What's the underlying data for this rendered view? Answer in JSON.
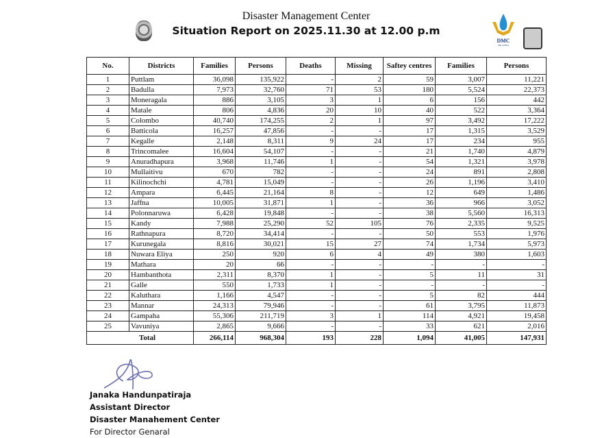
{
  "header": {
    "title": "Disaster Management Center",
    "subtitle": "Situation Report on 2025.11.30 at 12.00 p.m",
    "logo_text": "DMC",
    "logo_subtext": "SRI LANKA"
  },
  "table": {
    "columns": [
      "No.",
      "Districts",
      "Families",
      "Persons",
      "Deaths",
      "Missing",
      "Saftey centres",
      "Families",
      "Persons"
    ],
    "rows": [
      [
        "1",
        "Puttlam",
        "36,098",
        "135,922",
        "-",
        "2",
        "59",
        "3,007",
        "11,221"
      ],
      [
        "2",
        "Badulla",
        "7,973",
        "32,760",
        "71",
        "53",
        "180",
        "5,524",
        "22,373"
      ],
      [
        "3",
        "Moneragala",
        "886",
        "3,105",
        "3",
        "1",
        "6",
        "156",
        "442"
      ],
      [
        "4",
        "Matale",
        "806",
        "4,836",
        "20",
        "10",
        "40",
        "522",
        "3,364"
      ],
      [
        "5",
        "Colombo",
        "40,740",
        "174,255",
        "2",
        "1",
        "97",
        "3,492",
        "17,222"
      ],
      [
        "6",
        "Batticola",
        "16,257",
        "47,856",
        "-",
        "-",
        "17",
        "1,315",
        "3,529"
      ],
      [
        "7",
        "Kegalle",
        "2,148",
        "8,311",
        "9",
        "24",
        "17",
        "234",
        "955"
      ],
      [
        "8",
        "Trincomalee",
        "16,604",
        "54,107",
        "-",
        "-",
        "21",
        "1,740",
        "4,879"
      ],
      [
        "9",
        "Anuradhapura",
        "3,968",
        "11,746",
        "1",
        "-",
        "54",
        "1,321",
        "3,978"
      ],
      [
        "10",
        "Mullaitivu",
        "670",
        "782",
        "-",
        "-",
        "24",
        "891",
        "2,808"
      ],
      [
        "11",
        "Kilinochchi",
        "4,781",
        "15,049",
        "-",
        "-",
        "26",
        "1,196",
        "3,410"
      ],
      [
        "12",
        "Ampara",
        "6,445",
        "21,164",
        "8",
        "-",
        "12",
        "649",
        "1,486"
      ],
      [
        "13",
        "Jaffna",
        "10,005",
        "31,871",
        "1",
        "-",
        "36",
        "966",
        "3,052"
      ],
      [
        "14",
        "Polonnaruwa",
        "6,428",
        "19,848",
        "-",
        "-",
        "38",
        "5,560",
        "16,313"
      ],
      [
        "15",
        "Kandy",
        "7,988",
        "25,290",
        "52",
        "105",
        "76",
        "2,335",
        "9,525"
      ],
      [
        "16",
        "Rathnapura",
        "8,720",
        "34,414",
        "-",
        "-",
        "50",
        "553",
        "1,976"
      ],
      [
        "17",
        "Kurunegala",
        "8,816",
        "30,021",
        "15",
        "27",
        "74",
        "1,734",
        "5,973"
      ],
      [
        "18",
        "Nuwara Eliya",
        "250",
        "920",
        "6",
        "4",
        "49",
        "380",
        "1,603"
      ],
      [
        "19",
        "Mathara",
        "20",
        "66",
        "-",
        "-",
        "-",
        "-",
        "-"
      ],
      [
        "20",
        "Hambanthota",
        "2,311",
        "8,370",
        "1",
        "-",
        "5",
        "11",
        "31"
      ],
      [
        "21",
        "Galle",
        "550",
        "1,733",
        "1",
        "-",
        "-",
        "-",
        "-"
      ],
      [
        "22",
        "Kaluthara",
        "1,166",
        "4,547",
        "-",
        "-",
        "5",
        "82",
        "444"
      ],
      [
        "23",
        "Mannar",
        "24,313",
        "79,946",
        "-",
        "-",
        "61",
        "3,795",
        "11,873"
      ],
      [
        "24",
        "Gampaha",
        "55,306",
        "211,719",
        "3",
        "1",
        "114",
        "4,921",
        "19,458"
      ],
      [
        "25",
        "Vavuniya",
        "2,865",
        "9,666",
        "-",
        "-",
        "33",
        "621",
        "2,016"
      ]
    ],
    "total": {
      "label": "Total",
      "values": [
        "266,114",
        "968,304",
        "193",
        "228",
        "1,094",
        "41,005",
        "147,931"
      ]
    }
  },
  "footer": {
    "name": "Janaka Handunpatiraja",
    "role": "Assistant Director",
    "org": "Disaster Manahement Center",
    "note": "For Director Genaral"
  },
  "colors": {
    "text": "#111111",
    "signature": "#6b6fb0",
    "logo_gold": "#e0a81c",
    "logo_blue": "#2a8fd0"
  }
}
